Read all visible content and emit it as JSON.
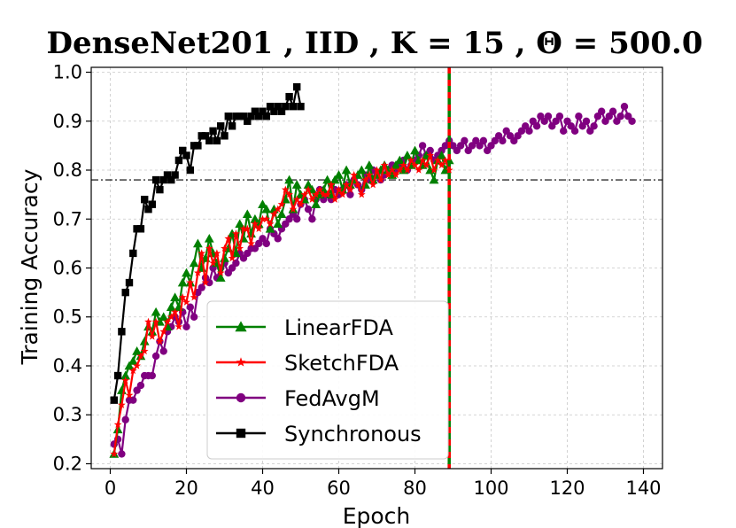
{
  "chart_data": {
    "type": "line",
    "title": "DenseNet201 , IID , K = 15 , Θ = 500.0",
    "xlabel": "Epoch",
    "ylabel": "Training Accuracy",
    "xlim": [
      -5,
      145
    ],
    "ylim": [
      0.19,
      1.01
    ],
    "xticks": [
      0,
      20,
      40,
      60,
      80,
      100,
      120,
      140
    ],
    "yticks": [
      0.2,
      0.3,
      0.4,
      0.5,
      0.6,
      0.7,
      0.8,
      0.9,
      1.0
    ],
    "grid": true,
    "legend_position": "lower-left",
    "reference_lines": {
      "horizontal_target_accuracy": 0.78,
      "vertical_epoch": 89
    },
    "series": [
      {
        "name": "LinearFDA",
        "color": "#008000",
        "marker": "triangle",
        "x": [
          1,
          2,
          3,
          4,
          5,
          6,
          7,
          8,
          9,
          10,
          11,
          12,
          13,
          14,
          15,
          16,
          17,
          18,
          19,
          20,
          21,
          22,
          23,
          24,
          25,
          26,
          27,
          28,
          29,
          30,
          31,
          32,
          33,
          34,
          35,
          36,
          37,
          38,
          39,
          40,
          41,
          42,
          43,
          44,
          45,
          46,
          47,
          48,
          49,
          50,
          51,
          52,
          53,
          54,
          55,
          56,
          57,
          58,
          59,
          60,
          61,
          62,
          63,
          64,
          65,
          66,
          67,
          68,
          69,
          70,
          71,
          72,
          73,
          74,
          75,
          76,
          77,
          78,
          79,
          80,
          81,
          82,
          83,
          84,
          85,
          86,
          87,
          88,
          89
        ],
        "values": [
          0.22,
          0.27,
          0.35,
          0.38,
          0.4,
          0.41,
          0.43,
          0.42,
          0.45,
          0.48,
          0.47,
          0.51,
          0.49,
          0.5,
          0.48,
          0.52,
          0.54,
          0.52,
          0.57,
          0.59,
          0.57,
          0.61,
          0.65,
          0.6,
          0.62,
          0.66,
          0.63,
          0.61,
          0.58,
          0.62,
          0.64,
          0.67,
          0.63,
          0.69,
          0.66,
          0.71,
          0.67,
          0.7,
          0.69,
          0.73,
          0.72,
          0.68,
          0.72,
          0.69,
          0.71,
          0.74,
          0.78,
          0.72,
          0.77,
          0.75,
          0.74,
          0.77,
          0.76,
          0.73,
          0.75,
          0.76,
          0.78,
          0.75,
          0.78,
          0.79,
          0.76,
          0.8,
          0.77,
          0.78,
          0.79,
          0.8,
          0.77,
          0.81,
          0.78,
          0.79,
          0.8,
          0.81,
          0.8,
          0.79,
          0.81,
          0.82,
          0.8,
          0.83,
          0.81,
          0.84,
          0.82,
          0.81,
          0.83,
          0.8,
          0.78,
          0.82,
          0.83,
          0.8,
          0.82
        ]
      },
      {
        "name": "SketchFDA",
        "color": "#ff0000",
        "marker": "star",
        "x": [
          1,
          2,
          3,
          4,
          5,
          6,
          7,
          8,
          9,
          10,
          11,
          12,
          13,
          14,
          15,
          16,
          17,
          18,
          19,
          20,
          21,
          22,
          23,
          24,
          25,
          26,
          27,
          28,
          29,
          30,
          31,
          32,
          33,
          34,
          35,
          36,
          37,
          38,
          39,
          40,
          41,
          42,
          43,
          44,
          45,
          46,
          47,
          48,
          49,
          50,
          51,
          52,
          53,
          54,
          55,
          56,
          57,
          58,
          59,
          60,
          61,
          62,
          63,
          64,
          65,
          66,
          67,
          68,
          69,
          70,
          71,
          72,
          73,
          74,
          75,
          76,
          77,
          78,
          79,
          80,
          81,
          82,
          83,
          84,
          85,
          86,
          87,
          88,
          89
        ],
        "values": [
          0.22,
          0.28,
          0.32,
          0.37,
          0.34,
          0.39,
          0.4,
          0.42,
          0.43,
          0.49,
          0.46,
          0.49,
          0.45,
          0.47,
          0.49,
          0.5,
          0.51,
          0.48,
          0.54,
          0.53,
          0.57,
          0.54,
          0.59,
          0.63,
          0.57,
          0.64,
          0.61,
          0.63,
          0.59,
          0.64,
          0.66,
          0.62,
          0.67,
          0.64,
          0.68,
          0.68,
          0.65,
          0.69,
          0.68,
          0.7,
          0.7,
          0.69,
          0.71,
          0.72,
          0.73,
          0.76,
          0.75,
          0.72,
          0.74,
          0.73,
          0.75,
          0.76,
          0.74,
          0.75,
          0.76,
          0.75,
          0.75,
          0.77,
          0.74,
          0.76,
          0.75,
          0.77,
          0.76,
          0.79,
          0.77,
          0.75,
          0.78,
          0.79,
          0.77,
          0.8,
          0.78,
          0.81,
          0.79,
          0.8,
          0.79,
          0.8,
          0.81,
          0.8,
          0.82,
          0.81,
          0.8,
          0.82,
          0.81,
          0.83,
          0.8,
          0.82,
          0.81,
          0.82,
          0.8
        ]
      },
      {
        "name": "FedAvgM",
        "color": "#800080",
        "marker": "circle",
        "x": [
          1,
          2,
          3,
          4,
          5,
          6,
          7,
          8,
          9,
          10,
          11,
          12,
          13,
          14,
          15,
          16,
          17,
          18,
          19,
          20,
          21,
          22,
          23,
          24,
          25,
          26,
          27,
          28,
          29,
          30,
          31,
          32,
          33,
          34,
          35,
          36,
          37,
          38,
          39,
          40,
          41,
          42,
          43,
          44,
          45,
          46,
          47,
          48,
          49,
          50,
          51,
          52,
          53,
          54,
          55,
          56,
          57,
          58,
          59,
          60,
          61,
          62,
          63,
          64,
          65,
          66,
          67,
          68,
          69,
          70,
          71,
          72,
          73,
          74,
          75,
          76,
          77,
          78,
          79,
          80,
          81,
          82,
          83,
          84,
          85,
          86,
          87,
          88,
          89,
          90,
          91,
          92,
          93,
          94,
          95,
          96,
          97,
          98,
          99,
          100,
          101,
          102,
          103,
          104,
          105,
          106,
          107,
          108,
          109,
          110,
          111,
          112,
          113,
          114,
          115,
          116,
          117,
          118,
          119,
          120,
          121,
          122,
          123,
          124,
          125,
          126,
          127,
          128,
          129,
          130,
          131,
          132,
          133,
          134,
          135,
          136,
          137
        ],
        "values": [
          0.24,
          0.25,
          0.22,
          0.29,
          0.33,
          0.33,
          0.35,
          0.36,
          0.38,
          0.38,
          0.38,
          0.42,
          0.45,
          0.43,
          0.47,
          0.48,
          0.5,
          0.49,
          0.51,
          0.48,
          0.52,
          0.5,
          0.55,
          0.56,
          0.58,
          0.57,
          0.6,
          0.58,
          0.6,
          0.61,
          0.59,
          0.6,
          0.61,
          0.63,
          0.62,
          0.63,
          0.64,
          0.64,
          0.65,
          0.66,
          0.65,
          0.68,
          0.67,
          0.66,
          0.68,
          0.69,
          0.7,
          0.71,
          0.7,
          0.73,
          0.74,
          0.72,
          0.7,
          0.74,
          0.76,
          0.74,
          0.75,
          0.74,
          0.76,
          0.75,
          0.76,
          0.77,
          0.75,
          0.78,
          0.77,
          0.76,
          0.79,
          0.78,
          0.8,
          0.79,
          0.78,
          0.79,
          0.8,
          0.81,
          0.8,
          0.81,
          0.82,
          0.8,
          0.81,
          0.82,
          0.83,
          0.85,
          0.83,
          0.84,
          0.82,
          0.83,
          0.84,
          0.85,
          0.86,
          0.85,
          0.84,
          0.85,
          0.86,
          0.84,
          0.85,
          0.86,
          0.85,
          0.86,
          0.84,
          0.85,
          0.86,
          0.87,
          0.86,
          0.88,
          0.87,
          0.86,
          0.87,
          0.88,
          0.89,
          0.88,
          0.9,
          0.89,
          0.91,
          0.9,
          0.91,
          0.89,
          0.9,
          0.91,
          0.88,
          0.9,
          0.89,
          0.88,
          0.91,
          0.89,
          0.9,
          0.88,
          0.89,
          0.91,
          0.92,
          0.9,
          0.91,
          0.92,
          0.9,
          0.91,
          0.93,
          0.91,
          0.9
        ]
      },
      {
        "name": "Synchronous",
        "color": "#000000",
        "marker": "square",
        "x": [
          1,
          2,
          3,
          4,
          5,
          6,
          7,
          8,
          9,
          10,
          11,
          12,
          13,
          14,
          15,
          16,
          17,
          18,
          19,
          20,
          21,
          22,
          23,
          24,
          25,
          26,
          27,
          28,
          29,
          30,
          31,
          32,
          33,
          34,
          35,
          36,
          37,
          38,
          39,
          40,
          41,
          42,
          43,
          44,
          45,
          46,
          47,
          48,
          49,
          50
        ],
        "values": [
          0.33,
          0.38,
          0.47,
          0.55,
          0.57,
          0.63,
          0.68,
          0.68,
          0.74,
          0.72,
          0.73,
          0.78,
          0.76,
          0.78,
          0.79,
          0.78,
          0.79,
          0.82,
          0.84,
          0.83,
          0.8,
          0.85,
          0.85,
          0.87,
          0.87,
          0.86,
          0.88,
          0.86,
          0.89,
          0.87,
          0.91,
          0.89,
          0.91,
          0.91,
          0.91,
          0.9,
          0.91,
          0.92,
          0.91,
          0.92,
          0.91,
          0.93,
          0.92,
          0.93,
          0.92,
          0.93,
          0.95,
          0.93,
          0.97,
          0.93
        ]
      }
    ]
  }
}
